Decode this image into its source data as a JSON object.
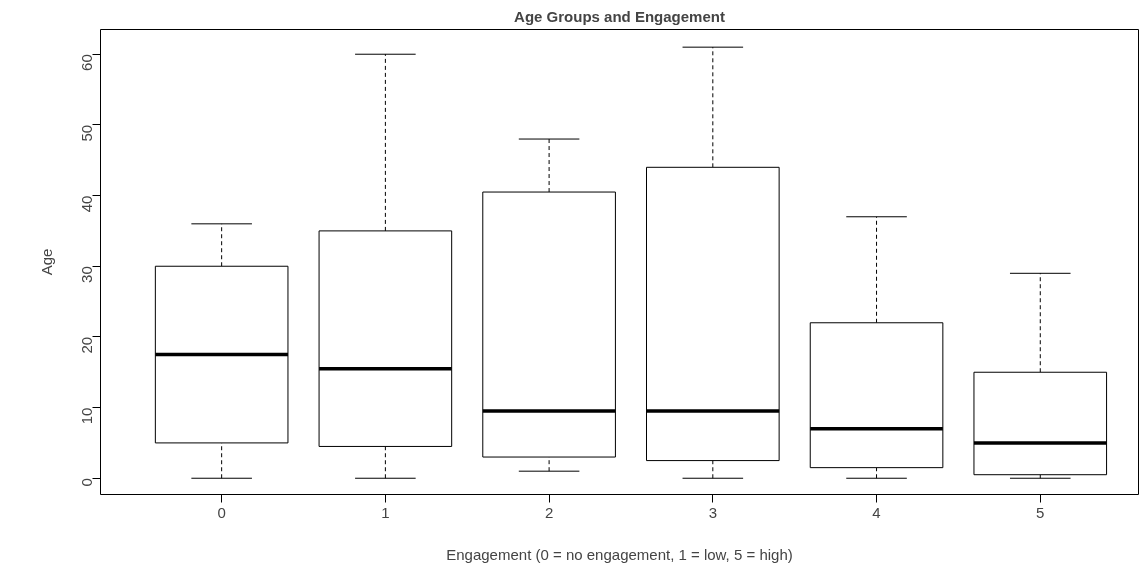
{
  "chart_data": {
    "type": "box",
    "title": "Age Groups and Engagement",
    "xlabel": "Engagement (0 = no engagement, 1 = low, 5 = high)",
    "ylabel": "Age",
    "categories": [
      "0",
      "1",
      "2",
      "3",
      "4",
      "5"
    ],
    "boxes": [
      {
        "low": 0,
        "q1": 5,
        "median": 17.5,
        "q3": 30,
        "high": 36
      },
      {
        "low": 0,
        "q1": 4.5,
        "median": 15.5,
        "q3": 35,
        "high": 60
      },
      {
        "low": 1,
        "q1": 3,
        "median": 9.5,
        "q3": 40.5,
        "high": 48
      },
      {
        "low": 0,
        "q1": 2.5,
        "median": 9.5,
        "q3": 44,
        "high": 61
      },
      {
        "low": 0,
        "q1": 1.5,
        "median": 7,
        "q3": 22,
        "high": 37
      },
      {
        "low": 0,
        "q1": 0.5,
        "median": 5,
        "q3": 15,
        "high": 29
      }
    ],
    "ylim": [
      -2.3,
      63.5
    ],
    "yticks": [
      0,
      10,
      20,
      30,
      40,
      50,
      60
    ]
  }
}
